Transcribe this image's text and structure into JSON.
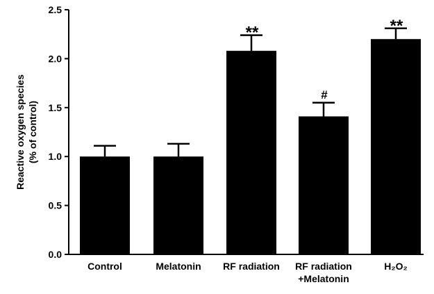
{
  "chart_data": {
    "type": "bar",
    "categories": [
      "Control",
      "Melatonin",
      "RF radiation",
      "RF radiation\n+Melatonin",
      "H2O2"
    ],
    "category_labels": [
      [
        "Control"
      ],
      [
        "Melatonin"
      ],
      [
        "RF radiation"
      ],
      [
        "RF radiation",
        "+Melatonin"
      ],
      [
        "H₂O₂"
      ]
    ],
    "values": [
      1.0,
      1.0,
      2.08,
      1.41,
      2.2
    ],
    "errors": [
      0.11,
      0.13,
      0.16,
      0.14,
      0.11
    ],
    "annotations": [
      "",
      "",
      "**",
      "#",
      "**"
    ],
    "ylabel_lines": [
      "Reactive oxygen species",
      "(% of control)"
    ],
    "xlabel": "",
    "title": "",
    "ylim": [
      0.0,
      2.5
    ],
    "yticks": [
      "0.0",
      "0.5",
      "1.0",
      "1.5",
      "2.0",
      "2.5"
    ],
    "ytick_values": [
      0.0,
      0.5,
      1.0,
      1.5,
      2.0,
      2.5
    ],
    "grid": false,
    "bar_color": "#000000"
  }
}
